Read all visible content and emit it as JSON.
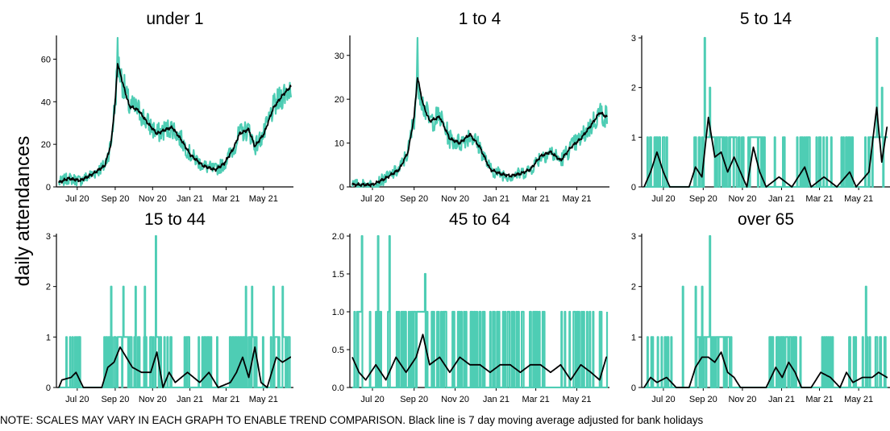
{
  "chart_data": {
    "type": "line",
    "ylabel": "daily attendances",
    "note": "NOTE: SCALES MAY VARY IN EACH GRAPH TO ENABLE TREND COMPARISON. Black line is 7 day moving average adjusted for bank holidays",
    "colors": {
      "daily": "#4ecdb4",
      "moving_average": "#000000"
    },
    "x_range": [
      "2020-06-01",
      "2021-06-15"
    ],
    "x_ticks": [
      {
        "date": "2020-07-01",
        "label": "Jul 20"
      },
      {
        "date": "2020-09-01",
        "label": "Sep 20"
      },
      {
        "date": "2020-11-01",
        "label": "Nov 20"
      },
      {
        "date": "2021-01-01",
        "label": "Jan 21"
      },
      {
        "date": "2021-03-01",
        "label": "Mar 21"
      },
      {
        "date": "2021-05-01",
        "label": "May 21"
      }
    ],
    "panels": [
      {
        "title": "under 1",
        "ylim": [
          0,
          70
        ],
        "yticks": [
          0,
          20,
          40,
          60
        ],
        "moving_average": [
          [
            0,
            2
          ],
          [
            15,
            4
          ],
          [
            35,
            3
          ],
          [
            55,
            6
          ],
          [
            75,
            10
          ],
          [
            85,
            20
          ],
          [
            92,
            40
          ],
          [
            96,
            58
          ],
          [
            105,
            48
          ],
          [
            115,
            38
          ],
          [
            130,
            36
          ],
          [
            145,
            30
          ],
          [
            160,
            25
          ],
          [
            175,
            27
          ],
          [
            185,
            28
          ],
          [
            200,
            22
          ],
          [
            215,
            15
          ],
          [
            235,
            10
          ],
          [
            255,
            8
          ],
          [
            270,
            11
          ],
          [
            285,
            18
          ],
          [
            295,
            25
          ],
          [
            310,
            27
          ],
          [
            320,
            19
          ],
          [
            335,
            25
          ],
          [
            350,
            37
          ],
          [
            365,
            43
          ],
          [
            378,
            47
          ]
        ],
        "daily_variation": 6,
        "daily_peaks": [
          [
            96,
            71
          ]
        ]
      },
      {
        "title": "1 to 4",
        "ylim": [
          0,
          34
        ],
        "yticks": [
          0,
          10,
          20,
          30
        ],
        "moving_average": [
          [
            0,
            0.5
          ],
          [
            30,
            0.5
          ],
          [
            50,
            2
          ],
          [
            70,
            4
          ],
          [
            83,
            8
          ],
          [
            92,
            16
          ],
          [
            97,
            25
          ],
          [
            105,
            19
          ],
          [
            115,
            15
          ],
          [
            130,
            16
          ],
          [
            145,
            11
          ],
          [
            160,
            10
          ],
          [
            175,
            12
          ],
          [
            190,
            9
          ],
          [
            205,
            4
          ],
          [
            220,
            3
          ],
          [
            235,
            2.5
          ],
          [
            250,
            3
          ],
          [
            265,
            4
          ],
          [
            280,
            7
          ],
          [
            295,
            8
          ],
          [
            310,
            6
          ],
          [
            325,
            9
          ],
          [
            340,
            11
          ],
          [
            355,
            14
          ],
          [
            368,
            17
          ],
          [
            378,
            16
          ]
        ],
        "daily_variation": 3,
        "daily_peaks": [
          [
            97,
            34
          ]
        ]
      },
      {
        "title": "5 to 14",
        "ylim": [
          0,
          3
        ],
        "yticks": [
          0,
          1,
          2,
          3
        ],
        "moving_average": [
          [
            0,
            0
          ],
          [
            10,
            0.3
          ],
          [
            20,
            0.7
          ],
          [
            30,
            0.3
          ],
          [
            40,
            0
          ],
          [
            70,
            0
          ],
          [
            80,
            0.4
          ],
          [
            90,
            0.2
          ],
          [
            100,
            1.4
          ],
          [
            110,
            0.6
          ],
          [
            120,
            0.7
          ],
          [
            130,
            0.3
          ],
          [
            140,
            0.6
          ],
          [
            150,
            0.3
          ],
          [
            160,
            0
          ],
          [
            170,
            0.8
          ],
          [
            180,
            0.3
          ],
          [
            190,
            0
          ],
          [
            210,
            0.2
          ],
          [
            230,
            0
          ],
          [
            250,
            0.4
          ],
          [
            260,
            0
          ],
          [
            280,
            0.2
          ],
          [
            300,
            0
          ],
          [
            320,
            0.3
          ],
          [
            330,
            0
          ],
          [
            350,
            0.3
          ],
          [
            362,
            1.6
          ],
          [
            370,
            0.5
          ],
          [
            378,
            1.2
          ]
        ],
        "daily_cap": 1,
        "daily_peaks": [
          [
            94,
            3
          ],
          [
            102,
            2
          ],
          [
            362,
            3
          ],
          [
            370,
            2
          ]
        ]
      },
      {
        "title": "15 to 44",
        "ylim": [
          0,
          3
        ],
        "yticks": [
          0,
          1,
          2,
          3
        ],
        "moving_average": [
          [
            0,
            0
          ],
          [
            5,
            0.15
          ],
          [
            20,
            0.2
          ],
          [
            28,
            0.3
          ],
          [
            40,
            0
          ],
          [
            70,
            0
          ],
          [
            80,
            0.4
          ],
          [
            90,
            0.5
          ],
          [
            100,
            0.8
          ],
          [
            110,
            0.6
          ],
          [
            120,
            0.4
          ],
          [
            135,
            0.3
          ],
          [
            150,
            0.3
          ],
          [
            160,
            0.7
          ],
          [
            170,
            0
          ],
          [
            180,
            0.3
          ],
          [
            190,
            0.1
          ],
          [
            210,
            0.3
          ],
          [
            230,
            0.1
          ],
          [
            245,
            0.3
          ],
          [
            260,
            0
          ],
          [
            280,
            0.1
          ],
          [
            290,
            0.3
          ],
          [
            300,
            0.6
          ],
          [
            310,
            0.2
          ],
          [
            320,
            0.8
          ],
          [
            330,
            0.1
          ],
          [
            340,
            0
          ],
          [
            355,
            0.6
          ],
          [
            365,
            0.5
          ],
          [
            378,
            0.6
          ]
        ],
        "daily_cap": 1,
        "daily_peaks": [
          [
            85,
            2
          ],
          [
            105,
            2
          ],
          [
            125,
            2
          ],
          [
            140,
            2
          ],
          [
            158,
            3
          ],
          [
            305,
            2
          ],
          [
            315,
            2
          ],
          [
            350,
            2
          ],
          [
            365,
            2
          ]
        ]
      },
      {
        "title": "45 to 64",
        "ylim": [
          0,
          2
        ],
        "yticks": [
          0.0,
          0.5,
          1.0,
          1.5,
          2.0
        ],
        "moving_average": [
          [
            0,
            0.4
          ],
          [
            10,
            0.2
          ],
          [
            20,
            0.1
          ],
          [
            35,
            0.3
          ],
          [
            50,
            0.1
          ],
          [
            65,
            0.4
          ],
          [
            80,
            0.2
          ],
          [
            95,
            0.4
          ],
          [
            105,
            0.7
          ],
          [
            115,
            0.3
          ],
          [
            130,
            0.4
          ],
          [
            145,
            0.2
          ],
          [
            160,
            0.4
          ],
          [
            175,
            0.3
          ],
          [
            190,
            0.3
          ],
          [
            205,
            0.2
          ],
          [
            220,
            0.3
          ],
          [
            235,
            0.3
          ],
          [
            250,
            0.2
          ],
          [
            265,
            0.3
          ],
          [
            280,
            0.3
          ],
          [
            295,
            0.2
          ],
          [
            310,
            0.3
          ],
          [
            325,
            0.1
          ],
          [
            340,
            0.3
          ],
          [
            355,
            0.2
          ],
          [
            368,
            0.1
          ],
          [
            378,
            0.4
          ]
        ],
        "daily_cap": 1,
        "daily_peaks": [
          [
            14,
            2
          ],
          [
            38,
            2
          ],
          [
            55,
            2
          ],
          [
            108,
            1.5
          ]
        ]
      },
      {
        "title": "over 65",
        "ylim": [
          0,
          3
        ],
        "yticks": [
          0,
          1,
          2,
          3
        ],
        "moving_average": [
          [
            0,
            0
          ],
          [
            10,
            0.2
          ],
          [
            20,
            0.1
          ],
          [
            35,
            0.2
          ],
          [
            50,
            0
          ],
          [
            70,
            0
          ],
          [
            80,
            0.4
          ],
          [
            90,
            0.6
          ],
          [
            100,
            0.6
          ],
          [
            110,
            0.5
          ],
          [
            120,
            0.7
          ],
          [
            130,
            0.3
          ],
          [
            140,
            0.2
          ],
          [
            150,
            0
          ],
          [
            190,
            0
          ],
          [
            205,
            0.4
          ],
          [
            215,
            0.2
          ],
          [
            225,
            0.5
          ],
          [
            235,
            0.3
          ],
          [
            245,
            0
          ],
          [
            260,
            0
          ],
          [
            275,
            0.3
          ],
          [
            290,
            0.2
          ],
          [
            305,
            0
          ],
          [
            315,
            0.3
          ],
          [
            325,
            0.1
          ],
          [
            340,
            0.2
          ],
          [
            355,
            0.2
          ],
          [
            365,
            0.3
          ],
          [
            378,
            0.2
          ]
        ],
        "daily_cap": 1,
        "daily_peaks": [
          [
            60,
            2
          ],
          [
            80,
            2
          ],
          [
            90,
            2
          ],
          [
            102,
            3
          ],
          [
            345,
            2
          ]
        ]
      }
    ]
  }
}
